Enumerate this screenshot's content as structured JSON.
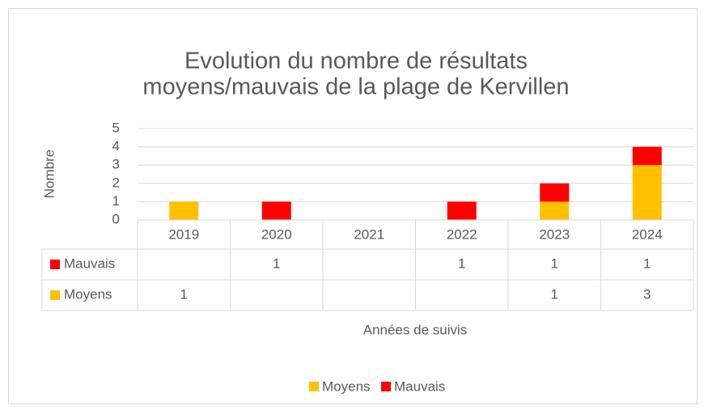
{
  "chart_data": {
    "type": "stacked_bar",
    "title": [
      "Evolution du nombre de résultats",
      "moyens/mauvais de la plage de Kervillen"
    ],
    "y_label": "Nombre",
    "x_label": "Années de suivis",
    "categories": [
      "2019",
      "2020",
      "2021",
      "2022",
      "2023",
      "2024"
    ],
    "series": [
      {
        "name": "Moyens",
        "color": "#ffc000",
        "values": [
          1,
          null,
          null,
          null,
          1,
          3
        ]
      },
      {
        "name": "Mauvais",
        "color": "#ff0000",
        "values": [
          null,
          1,
          null,
          1,
          1,
          1
        ]
      }
    ],
    "ylim": [
      0,
      5
    ],
    "yticks": [
      0,
      1,
      2,
      3,
      4,
      5
    ],
    "grid": true,
    "legend": "bottom",
    "data_table": true
  }
}
